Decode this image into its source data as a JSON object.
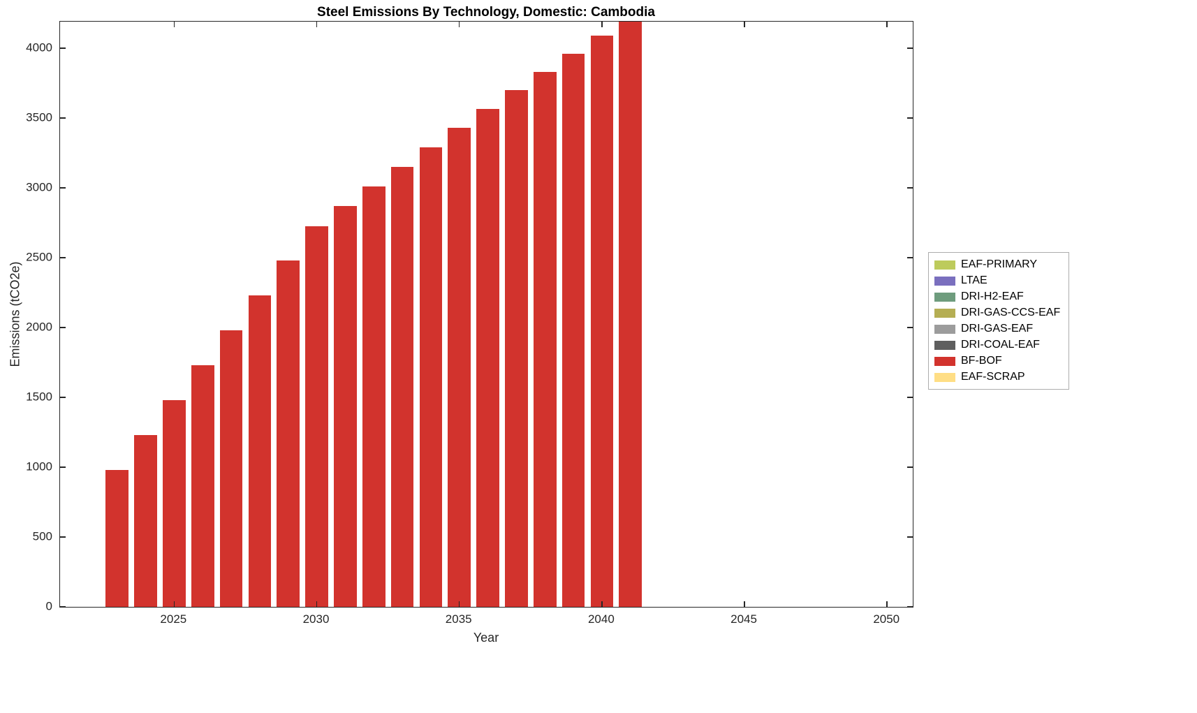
{
  "chart_data": {
    "type": "bar",
    "title": "Steel Emissions By Technology, Domestic: Cambodia",
    "xlabel": "Year",
    "ylabel": "Emissions (tCO2e)",
    "grid": false,
    "legend_position": "right-outside",
    "xlim": [
      2021.0,
      2050.9
    ],
    "ylim": [
      0,
      4190
    ],
    "x_ticks": [
      2025,
      2030,
      2035,
      2040,
      2045,
      2050
    ],
    "y_ticks": [
      0,
      500,
      1000,
      1500,
      2000,
      2500,
      3000,
      3500,
      4000
    ],
    "series_name": "BF-BOF",
    "bar_color": "#d2332d",
    "axis_color": "#262626",
    "x": [
      2023,
      2024,
      2025,
      2026,
      2027,
      2028,
      2029,
      2030,
      2031,
      2032,
      2033,
      2034,
      2035,
      2036,
      2037,
      2038,
      2039,
      2040,
      2041
    ],
    "values": [
      980,
      1230,
      1480,
      1730,
      1980,
      2230,
      2480,
      2725,
      2870,
      3010,
      3150,
      3290,
      3430,
      3565,
      3700,
      3830,
      3960,
      4090,
      4220
    ],
    "legend": [
      {
        "label": "EAF-PRIMARY",
        "color": "#bdcb5c"
      },
      {
        "label": "LTAE",
        "color": "#7a6fbe"
      },
      {
        "label": "DRI-H2-EAF",
        "color": "#6e9c7d"
      },
      {
        "label": "DRI-GAS-CCS-EAF",
        "color": "#b5ae53"
      },
      {
        "label": "DRI-GAS-EAF",
        "color": "#9c9c9c"
      },
      {
        "label": "DRI-COAL-EAF",
        "color": "#5f5f5f"
      },
      {
        "label": "BF-BOF",
        "color": "#d2332d"
      },
      {
        "label": "EAF-SCRAP",
        "color": "#ffde85"
      }
    ]
  }
}
